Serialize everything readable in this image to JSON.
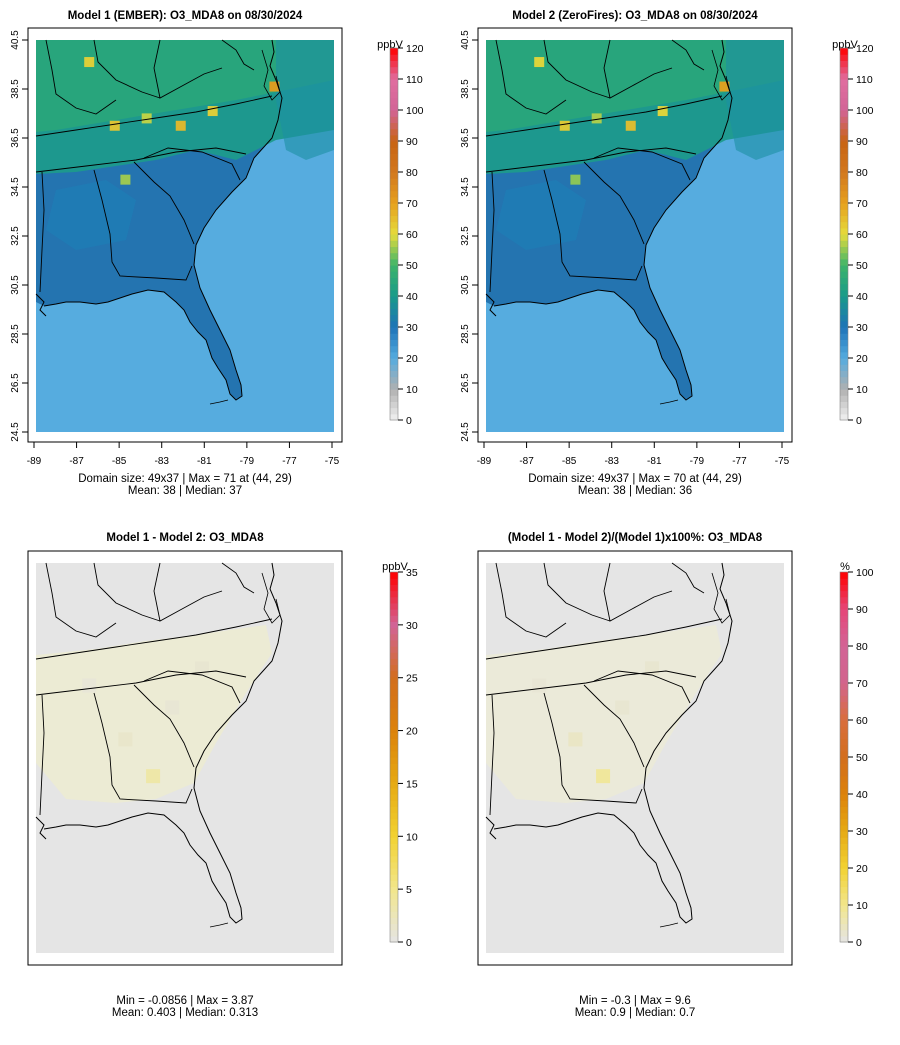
{
  "colors": {
    "water": "#56acdf",
    "diff_background": "#e5e5e5",
    "frame": "#000000"
  },
  "chart_data": [
    {
      "type": "heatmap",
      "panel": "model1",
      "title": "Model 1 (EMBER): O3_MDA8 on 08/30/2024",
      "xlabel": "",
      "ylabel": "",
      "x_ticks": [
        "-89",
        "-87",
        "-85",
        "-83",
        "-81",
        "-79",
        "-77",
        "-75"
      ],
      "y_ticks": [
        "24.5",
        "26.5",
        "28.5",
        "30.5",
        "32.5",
        "34.5",
        "36.5",
        "38.5",
        "40.5"
      ],
      "xlim": [
        -89,
        -75
      ],
      "ylim": [
        24.5,
        40.5
      ],
      "colorbar": {
        "label": "ppbV",
        "range": [
          0,
          120
        ],
        "ticks": [
          "0",
          "10",
          "20",
          "30",
          "40",
          "50",
          "60",
          "70",
          "80",
          "90",
          "100",
          "110",
          "120"
        ],
        "colors": [
          "#f2f2f2",
          "#b0b0b0",
          "#56acdf",
          "#1e73b8",
          "#1a9a8a",
          "#3cb46a",
          "#e6dc3c",
          "#e6a01e",
          "#d2781e",
          "#c86414",
          "#d26496",
          "#e06ea0",
          "#ff0000"
        ]
      },
      "hotspots": [
        {
          "lon": -86.5,
          "lat": 39.6,
          "value": 62
        },
        {
          "lon": -85.3,
          "lat": 37.0,
          "value": 64
        },
        {
          "lon": -83.8,
          "lat": 37.3,
          "value": 58
        },
        {
          "lon": -82.2,
          "lat": 37.0,
          "value": 66
        },
        {
          "lon": -80.7,
          "lat": 37.6,
          "value": 62
        },
        {
          "lon": -77.8,
          "lat": 38.6,
          "value": 71
        },
        {
          "lon": -84.8,
          "lat": 34.8,
          "value": 56
        }
      ],
      "stats_line1": "Domain size: 49x37 | Max = 71 at (44, 29)",
      "stats_line2": "Mean: 38 |  Median: 37"
    },
    {
      "type": "heatmap",
      "panel": "model2",
      "title": "Model 2 (ZeroFires): O3_MDA8 on 08/30/2024",
      "xlabel": "",
      "ylabel": "",
      "x_ticks": [
        "-89",
        "-87",
        "-85",
        "-83",
        "-81",
        "-79",
        "-77",
        "-75"
      ],
      "y_ticks": [
        "24.5",
        "26.5",
        "28.5",
        "30.5",
        "32.5",
        "34.5",
        "36.5",
        "38.5",
        "40.5"
      ],
      "xlim": [
        -89,
        -75
      ],
      "ylim": [
        24.5,
        40.5
      ],
      "colorbar": {
        "label": "ppbV",
        "range": [
          0,
          120
        ],
        "ticks": [
          "0",
          "10",
          "20",
          "30",
          "40",
          "50",
          "60",
          "70",
          "80",
          "90",
          "100",
          "110",
          "120"
        ],
        "colors": [
          "#f2f2f2",
          "#b0b0b0",
          "#56acdf",
          "#1e73b8",
          "#1a9a8a",
          "#3cb46a",
          "#e6dc3c",
          "#e6a01e",
          "#d2781e",
          "#c86414",
          "#d26496",
          "#e06ea0",
          "#ff0000"
        ]
      },
      "hotspots": [
        {
          "lon": -86.5,
          "lat": 39.6,
          "value": 61
        },
        {
          "lon": -85.3,
          "lat": 37.0,
          "value": 63
        },
        {
          "lon": -83.8,
          "lat": 37.3,
          "value": 57
        },
        {
          "lon": -82.2,
          "lat": 37.0,
          "value": 65
        },
        {
          "lon": -80.7,
          "lat": 37.6,
          "value": 61
        },
        {
          "lon": -77.8,
          "lat": 38.6,
          "value": 70
        },
        {
          "lon": -84.8,
          "lat": 34.8,
          "value": 55
        }
      ],
      "stats_line1": "Domain size: 49x37 | Max = 70 at (44, 29)",
      "stats_line2": "Mean: 38 |  Median: 36"
    },
    {
      "type": "heatmap",
      "panel": "difference",
      "title": "Model 1 - Model 2: O3_MDA8",
      "xlabel": "",
      "ylabel": "",
      "colorbar": {
        "label": "ppbV",
        "range": [
          0,
          35
        ],
        "ticks": [
          "0",
          "5",
          "10",
          "15",
          "20",
          "25",
          "30",
          "35"
        ],
        "colors": [
          "#e5e5e5",
          "#f2e68c",
          "#f2d232",
          "#e6aa14",
          "#dc820a",
          "#d26e1e",
          "#d26496",
          "#ff0000"
        ]
      },
      "hotspots": [
        {
          "lon": -83.5,
          "lat": 31.8,
          "value": 3.87
        },
        {
          "lon": -84.8,
          "lat": 33.3,
          "value": 1.6
        },
        {
          "lon": -82.6,
          "lat": 34.6,
          "value": 1.0
        },
        {
          "lon": -81.2,
          "lat": 36.2,
          "value": 1.2
        },
        {
          "lon": -86.5,
          "lat": 35.5,
          "value": 0.8
        }
      ],
      "stats_line1": "Min = -0.0856 | Max = 3.87",
      "stats_line2": "Mean: 0.403 |  Median: 0.313"
    },
    {
      "type": "heatmap",
      "panel": "percent_difference",
      "title": "(Model 1 - Model 2)/(Model 1)x100%: O3_MDA8",
      "xlabel": "",
      "ylabel": "",
      "colorbar": {
        "label": "%",
        "range": [
          0,
          100
        ],
        "ticks": [
          "0",
          "10",
          "20",
          "30",
          "40",
          "50",
          "60",
          "70",
          "80",
          "90",
          "100"
        ],
        "colors": [
          "#e5e5e5",
          "#f2e68c",
          "#f2d232",
          "#e6aa14",
          "#dc820a",
          "#d26e1e",
          "#d86e3c",
          "#d2648c",
          "#d26496",
          "#e64678",
          "#ff0000"
        ]
      },
      "hotspots": [
        {
          "lon": -83.5,
          "lat": 31.8,
          "value": 9.6
        },
        {
          "lon": -84.8,
          "lat": 33.3,
          "value": 4.0
        },
        {
          "lon": -82.6,
          "lat": 34.6,
          "value": 2.5
        },
        {
          "lon": -81.2,
          "lat": 36.2,
          "value": 2.6
        },
        {
          "lon": -86.5,
          "lat": 35.5,
          "value": 2.0
        }
      ],
      "stats_line1": "Min = -0.3 | Max = 9.6",
      "stats_line2": "Mean: 0.9 |  Median: 0.7"
    }
  ]
}
